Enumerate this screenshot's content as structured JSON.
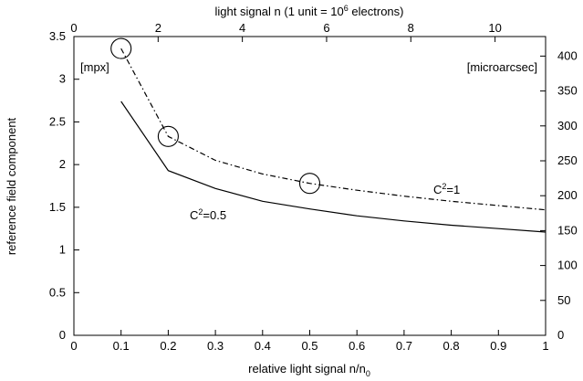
{
  "chart_data": {
    "type": "line",
    "title": "",
    "xlabel": "relative light signal n/n",
    "xlabel_sub": "0",
    "ylabel": "reference field component",
    "top_xlabel_pre": "light signal n (1 unit = 10",
    "top_xlabel_sup": "6",
    "top_xlabel_post": " electrons)",
    "y_unit_left": "[mpx]",
    "y_unit_right": "[microarcsec]",
    "xlim": [
      0,
      1
    ],
    "ylim": [
      0,
      3.5
    ],
    "y2lim": [
      0,
      428
    ],
    "top_xlim": [
      0,
      11.2
    ],
    "x_ticks": [
      "0",
      "0.1",
      "0.2",
      "0.3",
      "0.4",
      "0.5",
      "0.6",
      "0.7",
      "0.8",
      "0.9",
      "1"
    ],
    "y_ticks": [
      "0",
      "0.5",
      "1",
      "1.5",
      "2",
      "2.5",
      "3",
      "3.5"
    ],
    "y2_ticks": [
      "0",
      "50",
      "100",
      "150",
      "200",
      "250",
      "300",
      "350",
      "400"
    ],
    "top_x_ticks": [
      "0",
      "2",
      "4",
      "6",
      "8",
      "10"
    ],
    "grid": false,
    "series": [
      {
        "name": "C2=1",
        "label_base": "C",
        "label_sup": "2",
        "label_tail": "=1",
        "style": "dashdot",
        "color": "#000000",
        "x": [
          0.1,
          0.2,
          0.3,
          0.4,
          0.5,
          0.6,
          0.7,
          0.8,
          0.9,
          1.0
        ],
        "y": [
          3.36,
          2.33,
          2.05,
          1.89,
          1.78,
          1.7,
          1.63,
          1.57,
          1.52,
          1.47
        ]
      },
      {
        "name": "C2=0.5",
        "label_base": "C",
        "label_sup": "2",
        "label_tail": "=0.5",
        "style": "solid",
        "color": "#000000",
        "x": [
          0.1,
          0.2,
          0.3,
          0.4,
          0.5,
          0.6,
          0.7,
          0.8,
          0.9,
          1.0
        ],
        "y": [
          2.74,
          1.93,
          1.72,
          1.57,
          1.48,
          1.4,
          1.34,
          1.29,
          1.25,
          1.21
        ]
      }
    ],
    "circled_points": [
      {
        "x": 0.1,
        "y": 3.36
      },
      {
        "x": 0.2,
        "y": 2.33
      },
      {
        "x": 0.5,
        "y": 1.78
      }
    ]
  }
}
